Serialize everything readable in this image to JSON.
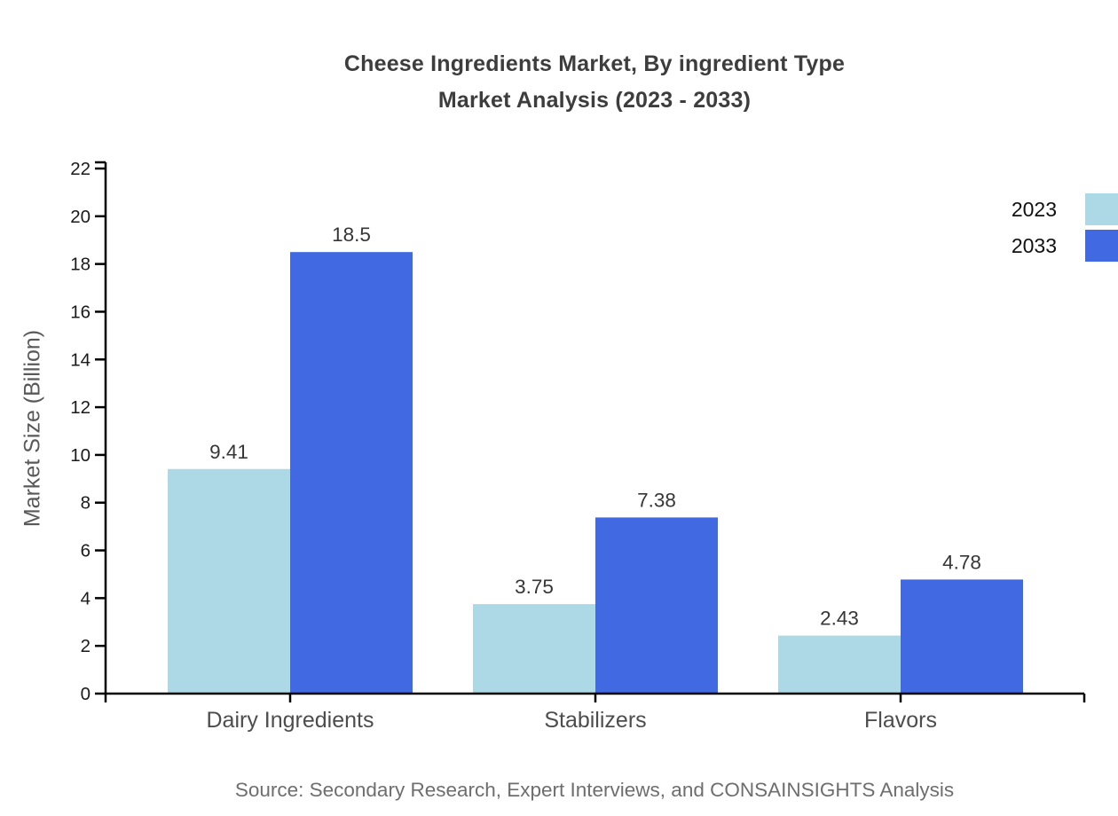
{
  "title": {
    "line1": "Cheese Ingredients Market, By ingredient Type",
    "line2": "Market Analysis (2023 - 2033)"
  },
  "source_note": "Source: Secondary Research, Expert Interviews, and CONSAINSIGHTS Analysis",
  "legend": {
    "items": [
      {
        "label": "2023",
        "color": "#ADD8E6"
      },
      {
        "label": "2033",
        "color": "#4169E1"
      }
    ]
  },
  "chart_data": {
    "type": "bar",
    "title": "Cheese Ingredients Market, By ingredient Type Market Analysis (2023 - 2033)",
    "categories": [
      "Dairy Ingredients",
      "Stabilizers",
      "Flavors"
    ],
    "series": [
      {
        "name": "2023",
        "color": "#ADD8E6",
        "values": [
          9.41,
          3.75,
          2.43
        ]
      },
      {
        "name": "2033",
        "color": "#4169E1",
        "values": [
          18.5,
          7.38,
          4.78
        ]
      }
    ],
    "data_labels": [
      [
        "9.41",
        "3.75",
        "2.43"
      ],
      [
        "18.5",
        "7.38",
        "4.78"
      ]
    ],
    "xlabel": "",
    "ylabel": "Market Size (Billion)",
    "ylim": [
      0,
      22
    ],
    "yticks": [
      0,
      2,
      4,
      6,
      8,
      10,
      12,
      14,
      16,
      18,
      20,
      22
    ],
    "grid": false,
    "legend_position": "right",
    "axis_color": "#000000",
    "tick_label_color": "#1a1a1a",
    "category_label_color": "#4d4d4d",
    "value_label_color": "#363636"
  }
}
